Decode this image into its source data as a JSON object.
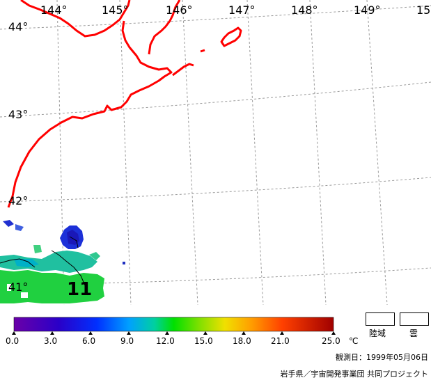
{
  "map": {
    "lon_labels": [
      "144°",
      "145°",
      "146°",
      "147°",
      "148°",
      "149°",
      "15"
    ],
    "lat_labels": [
      "44°",
      "43°",
      "42°",
      "41°"
    ],
    "contour_value": "11",
    "colors": {
      "coast": "#ff0000",
      "grid": "#9a9a9a"
    }
  },
  "colorbar": {
    "ticks": [
      "0.0",
      "3.0",
      "6.0",
      "9.0",
      "12.0",
      "15.0",
      "18.0",
      "21.0",
      "25.0"
    ],
    "unit": "℃",
    "range": [
      0.0,
      25.0
    ]
  },
  "legend": {
    "land": "陸域",
    "cloud": "雲"
  },
  "footer": {
    "observation_date": "観測日：1999年05月06日",
    "credit": "岩手県／宇宙開発事業団 共同プロジェクト"
  }
}
